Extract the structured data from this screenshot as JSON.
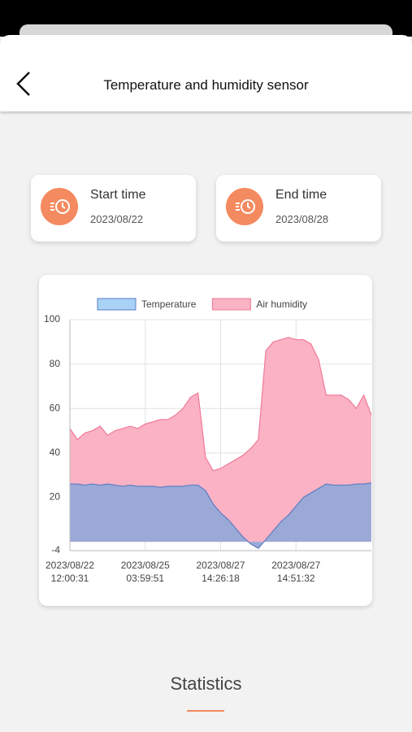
{
  "header": {
    "title": "Temperature and humidity sensor"
  },
  "time_cards": [
    {
      "label": "Start time",
      "value": "2023/08/22"
    },
    {
      "label": "End time",
      "value": "2023/08/28"
    }
  ],
  "chart_data": {
    "type": "area",
    "categories": [
      "2023/08/22\n12:00:31",
      null,
      null,
      null,
      null,
      null,
      null,
      null,
      null,
      null,
      "2023/08/25\n03:59:51",
      null,
      null,
      null,
      null,
      null,
      null,
      null,
      null,
      null,
      "2023/08/27\n14:26:18",
      null,
      null,
      null,
      null,
      null,
      null,
      null,
      null,
      null,
      "2023/08/27\n14:51:32",
      null,
      null,
      null,
      null,
      null,
      null,
      null,
      null,
      null,
      null
    ],
    "series": [
      {
        "name": "Temperature",
        "color": "#5b7cc4",
        "fill": "#9ba9d6",
        "legend_fill": "#a8d2f6",
        "values": [
          26,
          26,
          25.5,
          26,
          25.5,
          26,
          25.5,
          25,
          25.5,
          25,
          25,
          25,
          24.5,
          25,
          25,
          25,
          25.5,
          25.5,
          23,
          17,
          13,
          10,
          6,
          2,
          -1,
          -3,
          1,
          5,
          9,
          12,
          16,
          20,
          22,
          24,
          26,
          25.5,
          25.5,
          25.5,
          26,
          26,
          26.5
        ]
      },
      {
        "name": "Air humidity",
        "color": "#f07a98",
        "fill": "#fbb2c4",
        "legend_fill": "#f9b3c4",
        "values": [
          51,
          46,
          49,
          50,
          52,
          48,
          50,
          51,
          52,
          51,
          53,
          54,
          55,
          55,
          57,
          60,
          65,
          67,
          38,
          32,
          33,
          35,
          37,
          39,
          42,
          46,
          86,
          90,
          91,
          92,
          91,
          91,
          89,
          82,
          66,
          66,
          66,
          64,
          60,
          66,
          57
        ]
      }
    ],
    "ylim": [
      -4,
      100
    ],
    "yticks": [
      -4,
      20,
      40,
      60,
      80,
      100
    ],
    "grid": true,
    "legend": "top"
  },
  "section": {
    "title": "Statistics"
  }
}
